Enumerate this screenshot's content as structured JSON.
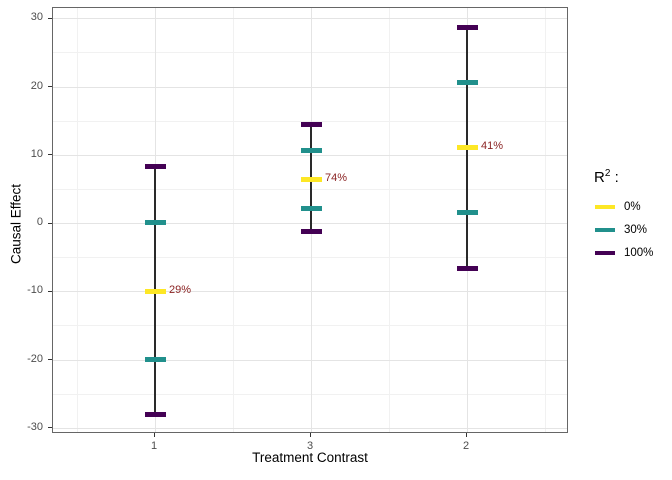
{
  "chart_data": {
    "type": "errorbar",
    "xlabel": "Treatment Contrast",
    "ylabel": "Causal Effect",
    "ylim": [
      -30.9,
      31.5
    ],
    "y_major_ticks": [
      -30,
      -20,
      -10,
      0,
      10,
      20,
      30
    ],
    "y_minor_ticks": [
      -25,
      -15,
      -5,
      5,
      15,
      25
    ],
    "categories": [
      "1",
      "3",
      "2"
    ],
    "legend": {
      "title_base": "R",
      "title_sup": "2",
      "title_suffix": " :",
      "items": [
        {
          "label": "0%",
          "color": "#FDE725"
        },
        {
          "label": "30%",
          "color": "#21908C"
        },
        {
          "label": "100%",
          "color": "#440154"
        }
      ]
    },
    "groups": [
      {
        "category": "1",
        "range": [
          -28.1,
          8.3
        ],
        "marks": [
          {
            "series": "100%",
            "value": 8.3
          },
          {
            "series": "30%",
            "value": 0.1
          },
          {
            "series": "0%",
            "value": -10.0,
            "label": "29%"
          },
          {
            "series": "30%",
            "value": -20.0
          },
          {
            "series": "100%",
            "value": -28.1
          }
        ]
      },
      {
        "category": "3",
        "range": [
          -1.3,
          14.4
        ],
        "marks": [
          {
            "series": "100%",
            "value": 14.4
          },
          {
            "series": "30%",
            "value": 10.7
          },
          {
            "series": "0%",
            "value": 6.4,
            "label": "74%"
          },
          {
            "series": "30%",
            "value": 2.2
          },
          {
            "series": "100%",
            "value": -1.3
          }
        ]
      },
      {
        "category": "2",
        "range": [
          -6.6,
          28.7
        ],
        "marks": [
          {
            "series": "100%",
            "value": 28.7
          },
          {
            "series": "30%",
            "value": 20.6
          },
          {
            "series": "0%",
            "value": 11.1,
            "label": "41%"
          },
          {
            "series": "30%",
            "value": 1.5
          },
          {
            "series": "100%",
            "value": -6.6
          }
        ]
      }
    ],
    "annotation_color": "#8B2323",
    "colors": {
      "grid_major": "#E4E4E4",
      "grid_minor": "#F1F1F1",
      "panel_border": "#666666",
      "axis_text": "#4D4D4D",
      "axis_tick": "#333333",
      "range_line": "#2A2A2A"
    }
  }
}
